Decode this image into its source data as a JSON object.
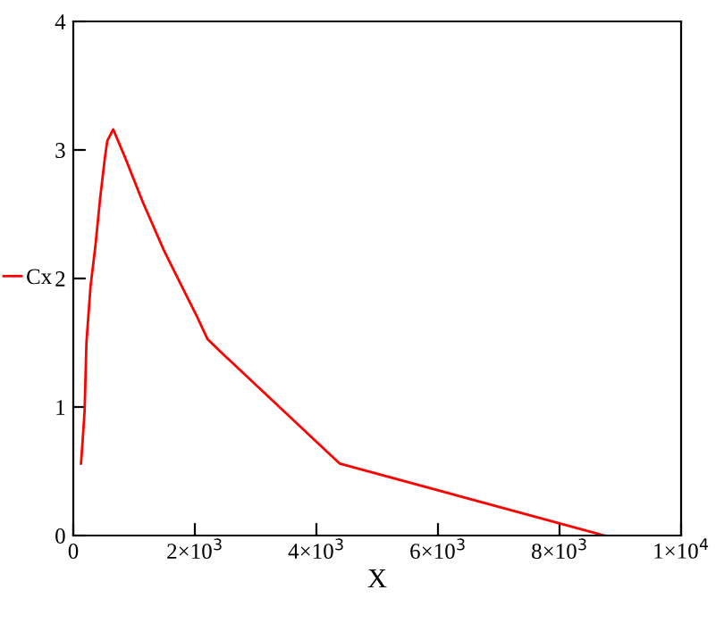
{
  "chart_data": {
    "type": "line",
    "xlabel": "X",
    "x": [
      127,
      147,
      186,
      216,
      284,
      363,
      441,
      520,
      559,
      657,
      853,
      1147,
      1490,
      1784,
      2029,
      2206,
      2422,
      4382,
      8735
    ],
    "series": [
      {
        "name": "Cx",
        "color": "#ff0000",
        "values": [
          0.56,
          0.69,
          0.97,
          1.5,
          1.94,
          2.25,
          2.62,
          2.94,
          3.07,
          3.16,
          2.94,
          2.59,
          2.22,
          1.94,
          1.71,
          1.53,
          1.43,
          0.56,
          0
        ]
      }
    ],
    "xlim": [
      0,
      10000
    ],
    "ylim": [
      0,
      4
    ],
    "xticks": [
      0,
      {
        "value": 2000,
        "label": "2×10$^{3}$"
      },
      {
        "value": 4000,
        "label": "4×10$^{3}$"
      },
      {
        "value": 6000,
        "label": "6×10$^{3}$"
      },
      {
        "value": 8000,
        "label": "8×10$^{3}$"
      },
      {
        "value": 10000,
        "label": "1×10$^{4}$"
      }
    ],
    "yticks": [
      0,
      1,
      2,
      3,
      4
    ],
    "legend": "left",
    "grid": false,
    "line_style": "solid"
  }
}
